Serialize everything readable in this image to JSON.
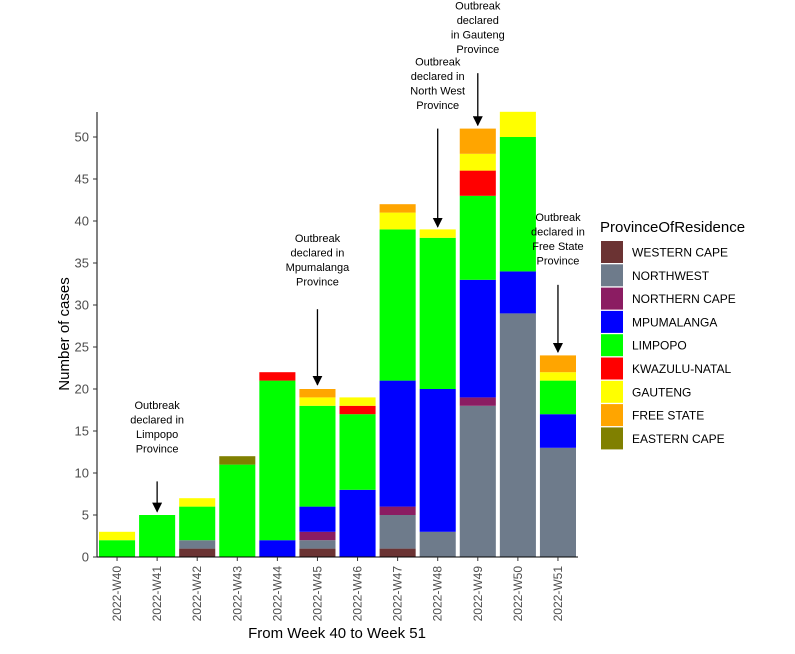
{
  "chart_data": {
    "type": "bar",
    "stacked": true,
    "title": "",
    "xlabel": "From Week 40 to Week 51",
    "ylabel": "Number of cases",
    "ylim": [
      0,
      53
    ],
    "yticks": [
      0,
      5,
      10,
      15,
      20,
      25,
      30,
      35,
      40,
      45,
      50
    ],
    "grid": false,
    "legend_title": "ProvinceOfResidence",
    "legend_position": "right",
    "categories": [
      "2022-W40",
      "2022-W41",
      "2022-W42",
      "2022-W43",
      "2022-W44",
      "2022-W45",
      "2022-W46",
      "2022-W47",
      "2022-W48",
      "2022-W49",
      "2022-W50",
      "2022-W51"
    ],
    "series": [
      {
        "name": "WESTERN CAPE",
        "color": "#6B3333",
        "values": [
          0,
          0,
          1,
          0,
          0,
          1,
          0,
          1,
          0,
          0,
          0,
          0
        ]
      },
      {
        "name": "NORTHWEST",
        "color": "#6E7B8B",
        "values": [
          0,
          0,
          1,
          0,
          0,
          1,
          0,
          4,
          3,
          18,
          29,
          13
        ]
      },
      {
        "name": "NORTHERN CAPE",
        "color": "#8B1C62",
        "values": [
          0,
          0,
          0,
          0,
          0,
          1,
          0,
          1,
          0,
          1,
          0,
          0
        ]
      },
      {
        "name": "MPUMALANGA",
        "color": "#0000FF",
        "values": [
          0,
          0,
          0,
          0,
          2,
          3,
          8,
          15,
          17,
          14,
          5,
          4
        ]
      },
      {
        "name": "LIMPOPO",
        "color": "#00FF00",
        "values": [
          2,
          5,
          4,
          11,
          19,
          12,
          9,
          18,
          18,
          10,
          16,
          4
        ]
      },
      {
        "name": "KWAZULU-NATAL",
        "color": "#FF0000",
        "values": [
          0,
          0,
          0,
          0,
          1,
          0,
          1,
          0,
          0,
          3,
          0,
          0
        ]
      },
      {
        "name": "GAUTENG",
        "color": "#FFFF00",
        "values": [
          1,
          0,
          1,
          0,
          0,
          1,
          1,
          2,
          1,
          2,
          3,
          1
        ]
      },
      {
        "name": "FREE STATE",
        "color": "#FFA500",
        "values": [
          0,
          0,
          0,
          0,
          0,
          1,
          0,
          1,
          0,
          3,
          0,
          2
        ]
      },
      {
        "name": "EASTERN CAPE",
        "color": "#808000",
        "values": [
          0,
          0,
          0,
          1,
          0,
          0,
          0,
          0,
          0,
          0,
          0,
          0
        ]
      }
    ],
    "annotations": [
      {
        "category": "2022-W41",
        "lines": [
          "Outbreak",
          "declared in",
          "Limpopo",
          "Province"
        ],
        "arrow_to": 5.4,
        "arrow_from": 9.0,
        "text_top": 17.6
      },
      {
        "category": "2022-W45",
        "lines": [
          "Outbreak",
          "declared in",
          "Mpumalanga",
          "Province"
        ],
        "arrow_to": 20.5,
        "arrow_from": 29.5,
        "text_top": 37.5
      },
      {
        "category": "2022-W48",
        "lines": [
          "Outbreak",
          "declared in",
          "North West",
          "Province"
        ],
        "arrow_to": 39.3,
        "arrow_from": 51.0,
        "text_top": 58.5
      },
      {
        "category": "2022-W49",
        "lines": [
          "Outbreak",
          "declared",
          "in Gauteng",
          "Province"
        ],
        "arrow_to": 51.4,
        "arrow_from": 57.6,
        "text_top": 65.2
      },
      {
        "category": "2022-W51",
        "lines": [
          "Outbreak",
          "declared in",
          "Free State",
          "Province"
        ],
        "arrow_to": 24.4,
        "arrow_from": 32.4,
        "text_top": 40.0
      }
    ]
  }
}
